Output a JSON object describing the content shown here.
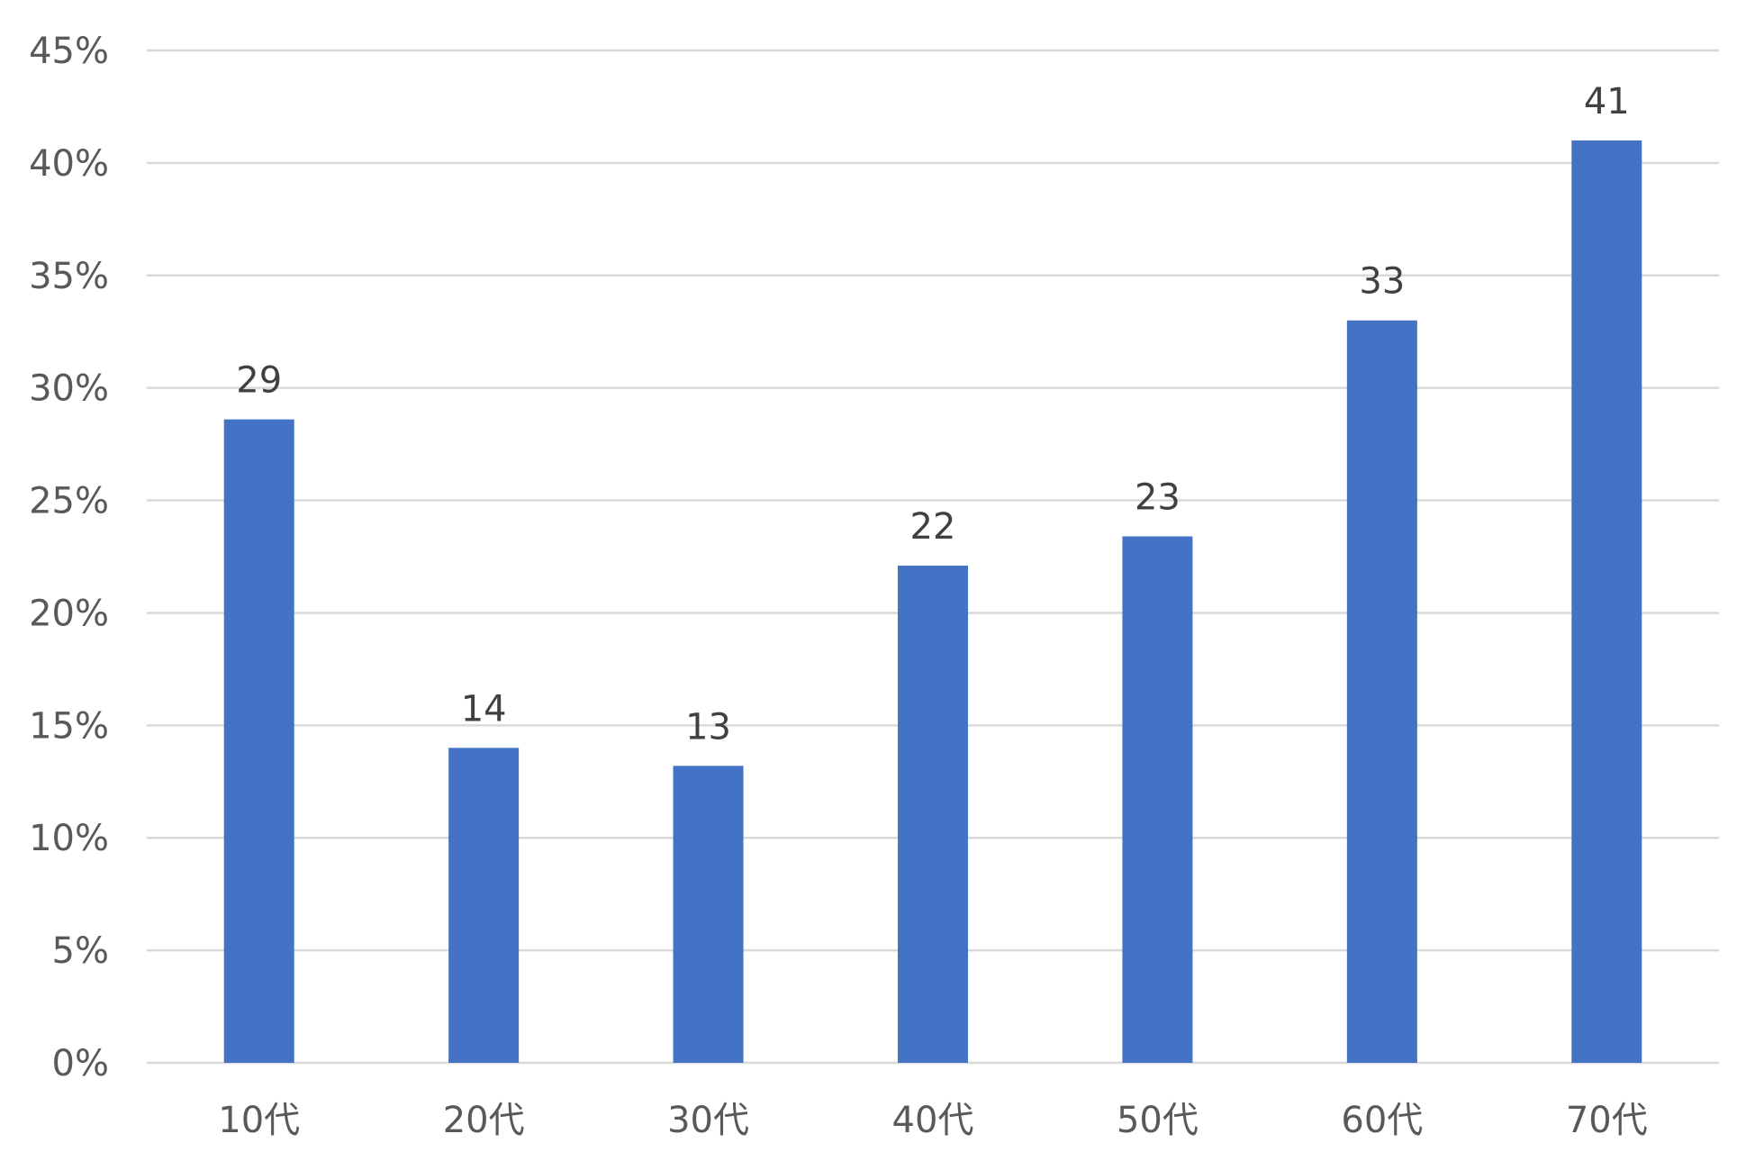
{
  "chart_data": {
    "type": "bar",
    "title": "",
    "xlabel": "",
    "ylabel": "",
    "categories": [
      "10代",
      "20代",
      "30代",
      "40代",
      "50代",
      "60代",
      "70代"
    ],
    "values": [
      28.6,
      14.0,
      13.2,
      22.1,
      23.4,
      33.0,
      41.0
    ],
    "data_labels": [
      "29",
      "14",
      "13",
      "22",
      "23",
      "33",
      "41"
    ],
    "ylim": [
      0,
      45
    ],
    "yticks": [
      0,
      5,
      10,
      15,
      20,
      25,
      30,
      35,
      40,
      45
    ],
    "ytick_labels": [
      "0%",
      "5%",
      "10%",
      "15%",
      "20%",
      "25%",
      "30%",
      "35%",
      "40%",
      "45%"
    ],
    "grid": true,
    "legend": "none",
    "bar_color": "#4472c4",
    "grid_color": "#d9d9d9",
    "tick_label_color": "#595959",
    "data_label_color": "#404040"
  }
}
